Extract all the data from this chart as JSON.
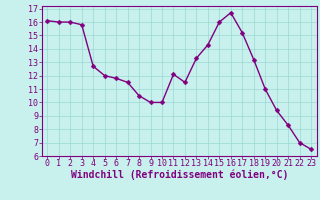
{
  "x": [
    0,
    1,
    2,
    3,
    4,
    5,
    6,
    7,
    8,
    9,
    10,
    11,
    12,
    13,
    14,
    15,
    16,
    17,
    18,
    19,
    20,
    21,
    22,
    23
  ],
  "y": [
    16.1,
    16.0,
    16.0,
    15.8,
    12.7,
    12.0,
    11.8,
    11.5,
    10.5,
    10.0,
    10.0,
    12.1,
    11.5,
    13.3,
    14.3,
    16.0,
    16.7,
    15.2,
    13.2,
    11.0,
    9.4,
    8.3,
    7.0,
    6.5
  ],
  "line_color": "#800080",
  "marker_color": "#800080",
  "bg_color": "#c8f0ec",
  "grid_color": "#99d8d4",
  "xlabel": "Windchill (Refroidissement éolien,°C)",
  "ylim": [
    6,
    17
  ],
  "xlim": [
    -0.5,
    23.5
  ],
  "yticks": [
    6,
    7,
    8,
    9,
    10,
    11,
    12,
    13,
    14,
    15,
    16,
    17
  ],
  "xticks": [
    0,
    1,
    2,
    3,
    4,
    5,
    6,
    7,
    8,
    9,
    10,
    11,
    12,
    13,
    14,
    15,
    16,
    17,
    18,
    19,
    20,
    21,
    22,
    23
  ],
  "tick_color": "#800080",
  "label_color": "#800080",
  "label_fontsize": 7,
  "tick_fontsize": 6,
  "line_width": 1.0,
  "marker_size": 2.5,
  "spine_color": "#800080"
}
